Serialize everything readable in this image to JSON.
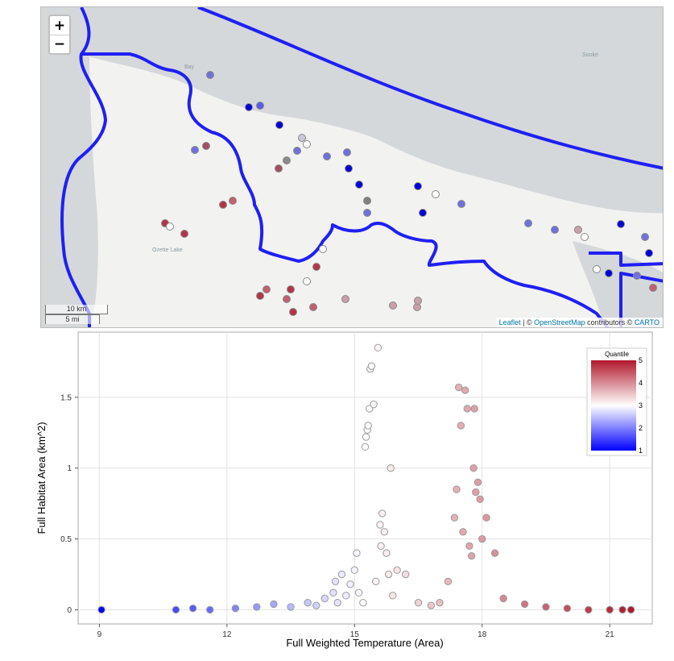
{
  "map": {
    "zoom_in_label": "+",
    "zoom_out_label": "−",
    "scale_km": "10 km",
    "scale_mi": "5 mi",
    "place_labels": [
      "Sooke",
      "Ozette Lake",
      "Bay"
    ],
    "attribution": {
      "leaflet": "Leaflet",
      "sep": " | © ",
      "osm": "OpenStreetMap",
      "mid": " contributors © ",
      "carto": "CARTO"
    },
    "colors": {
      "land": "#f2f2f0",
      "water": "#d4d8da",
      "boundary": "#1f1ff5"
    }
  },
  "chart_data": {
    "type": "scatter",
    "xlabel": "Full Weighted Temperature (Area)",
    "ylabel": "Full Habitat Area (km^2)",
    "xlim": [
      8.5,
      22
    ],
    "ylim": [
      -0.1,
      1.96
    ],
    "x_ticks": [
      9,
      12,
      15,
      18,
      21
    ],
    "y_ticks": [
      0,
      0.5,
      1,
      1.5
    ],
    "y_tick_labels": [
      "0",
      "0.5",
      "1",
      "1.5"
    ],
    "grid": true,
    "legend": {
      "title": "Quantile",
      "placement": "top-right",
      "ticks": [
        "1",
        "2",
        "3",
        "4",
        "5"
      ],
      "colors": [
        "#0000ff",
        "#ffffff",
        "#b2182b"
      ]
    },
    "points": [
      [
        9.05,
        0.0
      ],
      [
        10.8,
        0.0
      ],
      [
        11.2,
        0.01
      ],
      [
        11.6,
        0.0
      ],
      [
        12.2,
        0.01
      ],
      [
        12.7,
        0.02
      ],
      [
        13.1,
        0.04
      ],
      [
        13.5,
        0.02
      ],
      [
        13.9,
        0.05
      ],
      [
        14.1,
        0.03
      ],
      [
        14.3,
        0.08
      ],
      [
        14.5,
        0.12
      ],
      [
        14.55,
        0.2
      ],
      [
        14.6,
        0.05
      ],
      [
        14.7,
        0.25
      ],
      [
        14.8,
        0.1
      ],
      [
        14.9,
        0.18
      ],
      [
        15.0,
        0.28
      ],
      [
        15.05,
        0.4
      ],
      [
        15.1,
        0.12
      ],
      [
        15.2,
        0.05
      ],
      [
        15.25,
        1.15
      ],
      [
        15.27,
        1.22
      ],
      [
        15.3,
        1.27
      ],
      [
        15.32,
        1.3
      ],
      [
        15.35,
        1.42
      ],
      [
        15.37,
        1.7
      ],
      [
        15.4,
        1.72
      ],
      [
        15.45,
        1.45
      ],
      [
        15.5,
        0.2
      ],
      [
        15.55,
        1.85
      ],
      [
        15.6,
        0.6
      ],
      [
        15.62,
        0.45
      ],
      [
        15.65,
        0.68
      ],
      [
        15.7,
        0.55
      ],
      [
        15.75,
        0.4
      ],
      [
        15.8,
        0.25
      ],
      [
        15.85,
        1.0
      ],
      [
        15.9,
        0.1
      ],
      [
        16.0,
        0.28
      ],
      [
        16.2,
        0.25
      ],
      [
        16.5,
        0.05
      ],
      [
        16.8,
        0.03
      ],
      [
        17.0,
        0.05
      ],
      [
        17.2,
        0.2
      ],
      [
        17.35,
        0.65
      ],
      [
        17.4,
        0.85
      ],
      [
        17.45,
        1.57
      ],
      [
        17.5,
        1.3
      ],
      [
        17.55,
        0.55
      ],
      [
        17.6,
        1.55
      ],
      [
        17.65,
        1.42
      ],
      [
        17.7,
        0.45
      ],
      [
        17.75,
        0.38
      ],
      [
        17.8,
        1.0
      ],
      [
        17.82,
        1.42
      ],
      [
        17.85,
        0.83
      ],
      [
        17.9,
        0.9
      ],
      [
        17.95,
        0.78
      ],
      [
        18.0,
        0.5
      ],
      [
        18.1,
        0.65
      ],
      [
        18.3,
        0.4
      ],
      [
        18.5,
        0.08
      ],
      [
        19.0,
        0.04
      ],
      [
        19.5,
        0.02
      ],
      [
        20.0,
        0.01
      ],
      [
        20.5,
        0.0
      ],
      [
        21.0,
        0.0
      ],
      [
        21.3,
        0.0
      ],
      [
        21.5,
        0.0
      ]
    ]
  }
}
